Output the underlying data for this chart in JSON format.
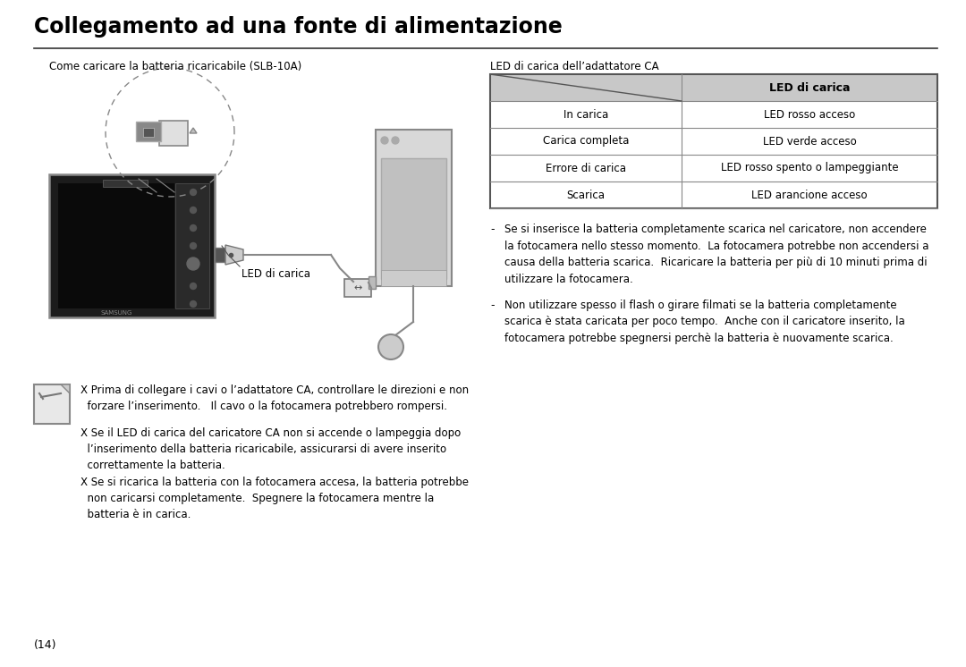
{
  "title": "Collegamento ad una fonte di alimentazione",
  "subtitle_left": "Come caricare la batteria ricaricabile (SLB-10A)",
  "subtitle_right": "LED di carica dell’adattatore CA",
  "table_header": "LED di carica",
  "table_rows": [
    [
      "In carica",
      "LED rosso acceso"
    ],
    [
      "Carica completa",
      "LED verde acceso"
    ],
    [
      "Errore di carica",
      "LED rosso spento o lampeggiante"
    ],
    [
      "Scarica",
      "LED arancione acceso"
    ]
  ],
  "led_label": "LED di carica",
  "bullet1_dash": "-",
  "bullet1_text": "Se si inserisce la batteria completamente scarica nel caricatore, non accendere\nla fotocamera nello stesso momento.  La fotocamera potrebbe non accendersi a\ncausa della batteria scarica.  Ricaricare la batteria per più di 10 minuti prima di\nutilizzare la fotocamera.",
  "bullet2_dash": "-",
  "bullet2_text": "Non utilizzare spesso il flash o girare filmati se la batteria completamente\nscarica è stata caricata per poco tempo.  Anche con il caricatore inserito, la\nfotocamera potrebbe spegnersi perchè la batteria è nuovamente scarica.",
  "note1": "X Prima di collegare i cavi o l’adattatore CA, controllare le direzioni e non\n  forzare l’inserimento.   Il cavo o la fotocamera potrebbero rompersi.",
  "note2": "X Se il LED di carica del caricatore CA non si accende o lampeggia dopo\n  l’inserimento della batteria ricaricabile, assicurarsi di avere inserito\n  correttamente la batteria.",
  "note3": "X Se si ricarica la batteria con la fotocamera accesa, la batteria potrebbe\n  non caricarsi completamente.  Spegnere la fotocamera mentre la\n  batteria è in carica.",
  "page_number": "(14)",
  "bg_color": "#ffffff",
  "title_color": "#000000",
  "text_color": "#000000",
  "table_header_bg": "#c8c8c8",
  "table_border_color": "#555555",
  "cam_body_color": "#1a1a1a",
  "cam_border_color": "#555555"
}
